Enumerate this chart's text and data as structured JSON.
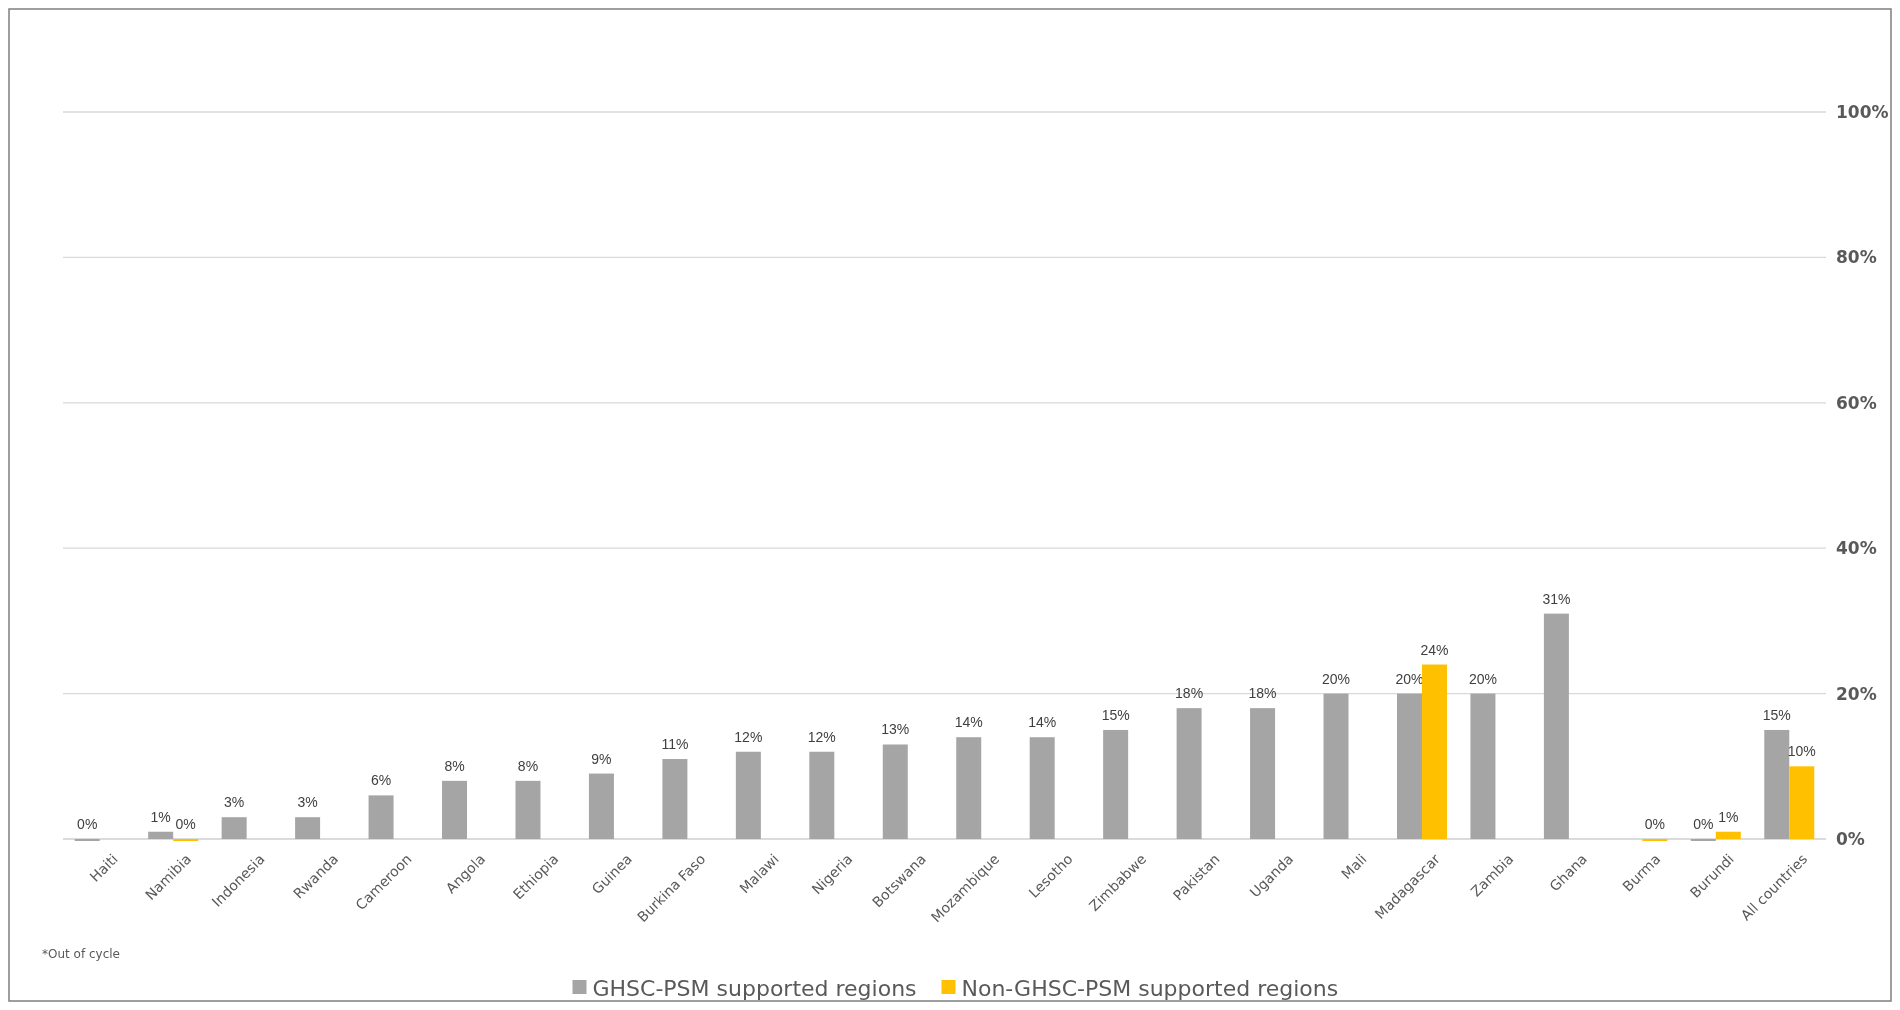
{
  "chart_data": {
    "type": "bar",
    "categories": [
      "Haiti",
      "Namibia",
      "Indonesia",
      "Rwanda",
      "Cameroon",
      "Angola",
      "Ethiopia",
      "Guinea",
      "Burkina Faso",
      "Malawi",
      "Nigeria",
      "Botswana",
      "Mozambique",
      "Lesotho",
      "Zimbabwe",
      "Pakistan",
      "Uganda",
      "Mali",
      "Madagascar",
      "Zambia",
      "Ghana",
      "Burma",
      "Burundi",
      "All countries"
    ],
    "series": [
      {
        "name": "GHSC-PSM supported regions",
        "color": "#a5a5a5",
        "values": [
          0,
          1,
          3,
          3,
          6,
          8,
          8,
          9,
          11,
          12,
          12,
          13,
          14,
          14,
          15,
          18,
          18,
          20,
          20,
          20,
          31,
          null,
          0,
          15
        ],
        "value_labels": [
          "0%",
          "1%",
          "3%",
          "3%",
          "6%",
          "8%",
          "8%",
          "9%",
          "11%",
          "12%",
          "12%",
          "13%",
          "14%",
          "14%",
          "15%",
          "18%",
          "18%",
          "20%",
          "20%",
          "20%",
          "31%",
          null,
          "0%",
          "15%"
        ]
      },
      {
        "name": "Non-GHSC-PSM supported regions",
        "color": "#ffc000",
        "values": [
          null,
          0,
          null,
          null,
          null,
          null,
          null,
          null,
          null,
          null,
          null,
          null,
          null,
          null,
          null,
          null,
          null,
          null,
          24,
          null,
          null,
          0,
          1,
          10
        ],
        "value_labels": [
          null,
          "0%",
          null,
          null,
          null,
          null,
          null,
          null,
          null,
          null,
          null,
          null,
          null,
          null,
          null,
          null,
          null,
          null,
          "24%",
          null,
          null,
          "0%",
          "1%",
          "10%"
        ]
      }
    ],
    "ylim": [
      0,
      100
    ],
    "yticks": [
      {
        "value": 0,
        "label": "0%"
      },
      {
        "value": 20,
        "label": "20%"
      },
      {
        "value": 40,
        "label": "40%"
      },
      {
        "value": 60,
        "label": "60%"
      },
      {
        "value": 80,
        "label": "80%"
      },
      {
        "value": 100,
        "label": "100%"
      }
    ],
    "grid": "y",
    "legend": "bottom",
    "annotations": [
      "*Out of cycle"
    ]
  }
}
